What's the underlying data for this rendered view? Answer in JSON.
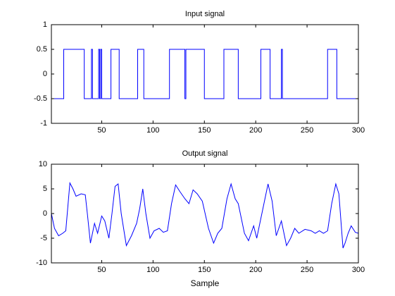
{
  "chart_data": [
    {
      "type": "line",
      "title": "Input signal",
      "color": "#0000ff",
      "x": [
        1,
        13,
        13,
        33,
        33,
        40,
        40,
        41,
        41,
        47,
        47,
        48,
        48,
        49,
        49,
        50,
        50,
        51,
        51,
        59,
        59,
        67,
        67,
        85,
        85,
        91,
        91,
        116,
        116,
        131,
        131,
        132,
        132,
        134,
        134,
        150,
        150,
        169,
        169,
        183,
        183,
        205,
        205,
        214,
        214,
        225,
        225,
        226,
        226,
        270,
        270,
        279,
        279,
        300
      ],
      "values": [
        -0.5,
        -0.5,
        0.5,
        0.5,
        -0.5,
        -0.5,
        0.5,
        0.5,
        -0.5,
        -0.5,
        0.5,
        0.5,
        -0.5,
        -0.5,
        0.5,
        0.5,
        -0.5,
        -0.5,
        -0.5,
        -0.5,
        0.5,
        0.5,
        -0.5,
        -0.5,
        0.5,
        0.5,
        -0.5,
        -0.5,
        0.5,
        0.5,
        -0.5,
        -0.5,
        0.5,
        0.5,
        0.5,
        0.5,
        -0.5,
        -0.5,
        0.5,
        0.5,
        -0.5,
        -0.5,
        0.5,
        0.5,
        -0.5,
        -0.5,
        0.5,
        0.5,
        -0.5,
        -0.5,
        0.5,
        0.5,
        -0.5,
        -0.5
      ],
      "xlim": [
        1,
        300
      ],
      "xticks": [
        50,
        100,
        150,
        200,
        250,
        300
      ],
      "ylim": [
        -1,
        1
      ],
      "yticks": [
        -1,
        -0.5,
        0,
        0.5,
        1
      ]
    },
    {
      "type": "line",
      "title": "Output signal",
      "xlabel": "Sample",
      "color": "#0000ff",
      "x": [
        1,
        4,
        8,
        12,
        15,
        19,
        22,
        25,
        30,
        34,
        36,
        39,
        43,
        46,
        50,
        53,
        57,
        60,
        63,
        66,
        69,
        74,
        79,
        84,
        87,
        90,
        93,
        97,
        101,
        106,
        110,
        114,
        118,
        122,
        126,
        131,
        135,
        139,
        143,
        148,
        154,
        159,
        163,
        167,
        172,
        176,
        180,
        183,
        189,
        193,
        198,
        201,
        206,
        212,
        216,
        220,
        225,
        230,
        234,
        238,
        242,
        248,
        254,
        258,
        262,
        266,
        270,
        274,
        278,
        281,
        285,
        287,
        290,
        293,
        297,
        300
      ],
      "values": [
        0,
        -3,
        -4.5,
        -4,
        -3.5,
        6.2,
        5,
        3.5,
        4,
        3.8,
        0,
        -6,
        -2,
        -4,
        -0.5,
        -1.5,
        -5,
        0,
        5.5,
        6,
        0,
        -6.5,
        -4.5,
        -2,
        1,
        5,
        0,
        -5,
        -3.5,
        -3,
        -3.8,
        -3.5,
        2,
        5.8,
        4.5,
        3,
        2,
        4.8,
        4,
        2.5,
        -3,
        -6,
        -4,
        -3,
        3,
        6,
        3,
        2,
        -4,
        -5.5,
        -2.5,
        -5,
        0,
        6,
        2.5,
        -4.5,
        -1.5,
        -6.5,
        -5,
        -3,
        -4,
        -3.2,
        -3.5,
        -4,
        -3.5,
        -4,
        -3.5,
        2,
        6,
        4,
        -7,
        -6,
        -4,
        -2.5,
        -3.8,
        -4
      ],
      "xlim": [
        1,
        300
      ],
      "xticks": [
        50,
        100,
        150,
        200,
        250,
        300
      ],
      "ylim": [
        -10,
        10
      ],
      "yticks": [
        -10,
        -5,
        0,
        5,
        10
      ]
    }
  ]
}
